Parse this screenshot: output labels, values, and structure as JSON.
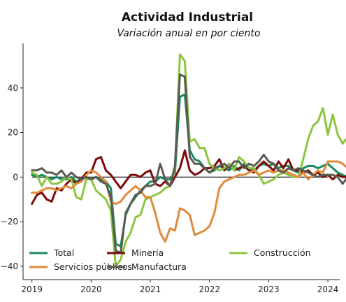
{
  "chart_data": {
    "type": "line",
    "title": "Actividad Industrial",
    "subtitle": "Variación anual en por ciento",
    "xlabel": "",
    "ylabel": "",
    "xlim": [
      2018.85,
      2024.2
    ],
    "ylim": [
      -46,
      60
    ],
    "x_ticks": [
      2019,
      2020,
      2021,
      2022,
      2023,
      2024
    ],
    "x_tick_labels": [
      "2019",
      "2020",
      "2021",
      "2022",
      "2023",
      "2024"
    ],
    "y_ticks": [
      -40,
      -20,
      0,
      20,
      40
    ],
    "y_tick_labels": [
      "−40",
      "−20",
      "0",
      "20",
      "40"
    ],
    "zero_line": true,
    "grid": false,
    "legend": {
      "location": "lower-left",
      "columns": 3
    },
    "x_start": 2019.0,
    "x_step": 0.08333,
    "series": [
      {
        "name": "Total",
        "color": "#1a8a5e",
        "values": [
          1,
          0,
          1,
          0,
          -1,
          0,
          -1,
          -1,
          0,
          -2,
          -1,
          0,
          -1,
          0,
          -1,
          -2,
          -5,
          -30,
          -31,
          -17,
          -12,
          -9,
          -6,
          -4,
          -2,
          -2,
          0,
          -1,
          -1,
          2,
          36,
          37,
          12,
          8,
          7,
          4,
          2,
          3,
          5,
          4,
          3,
          5,
          3,
          6,
          4,
          3,
          5,
          6,
          5,
          6,
          4,
          5,
          5,
          3,
          2,
          4,
          5,
          5,
          4,
          5,
          6,
          4,
          2,
          1,
          0,
          2,
          -1,
          3
        ]
      },
      {
        "name": "Minería",
        "color": "#7a0b0b",
        "values": [
          -12,
          -8,
          -7,
          -10,
          -11,
          -5,
          -6,
          -3,
          -1,
          -3,
          -1,
          2,
          2,
          8,
          9,
          3,
          1,
          -2,
          -5,
          -2,
          1,
          1,
          0,
          2,
          3,
          -3,
          -4,
          -2,
          -4,
          0,
          4,
          12,
          3,
          1,
          2,
          4,
          4,
          5,
          8,
          3,
          6,
          3,
          4,
          5,
          3,
          2,
          5,
          7,
          5,
          3,
          7,
          4,
          8,
          3,
          3,
          2,
          3,
          1,
          2,
          0,
          1,
          -1,
          1,
          0,
          0,
          -1,
          -2,
          -1
        ]
      },
      {
        "name": "Construcción",
        "color": "#8cc63f",
        "values": [
          2,
          1,
          -4,
          0,
          -3,
          -3,
          -2,
          0,
          -1,
          -9,
          -10,
          -1,
          -1,
          -6,
          -8,
          -10,
          -15,
          -40,
          -37,
          -29,
          -25,
          -18,
          -17,
          -10,
          -9,
          -8,
          -7,
          -5,
          -4,
          4,
          55,
          52,
          16,
          17,
          13,
          13,
          6,
          4,
          3,
          4,
          6,
          3,
          9,
          7,
          4,
          4,
          1,
          -3,
          -2,
          -1,
          1,
          2,
          1,
          0,
          0,
          8,
          17,
          23,
          25,
          31,
          19,
          28,
          19,
          15,
          18
        ]
      },
      {
        "name": "Servicios públicos",
        "color": "#e08a3c",
        "values": [
          -7,
          -7,
          -6,
          -5,
          -5,
          -6,
          -5,
          -4,
          -5,
          -3,
          -2,
          1,
          3,
          2,
          0,
          -2,
          -11,
          -12,
          -11,
          -8,
          -6,
          -4,
          -6,
          -9,
          -9,
          -16,
          -25,
          -29,
          -23,
          -24,
          -14,
          -15,
          -17,
          -26,
          -25,
          -24,
          -22,
          -16,
          -5,
          -2,
          -1,
          0,
          1,
          1,
          2,
          3,
          1,
          2,
          3,
          2,
          3,
          3,
          2,
          1,
          0,
          2,
          -1,
          1,
          3,
          2,
          7,
          7,
          7,
          6,
          4,
          1
        ]
      },
      {
        "name": "Manufactura",
        "color": "#5b5b52",
        "values": [
          3,
          3,
          4,
          2,
          2,
          1,
          3,
          0,
          2,
          0,
          -1,
          0,
          -1,
          0,
          -2,
          -3,
          -9,
          -33,
          -34,
          -16,
          -12,
          -8,
          -7,
          -4,
          -4,
          -3,
          6,
          -1,
          -4,
          5,
          46,
          45,
          9,
          6,
          6,
          4,
          2,
          4,
          5,
          6,
          4,
          7,
          7,
          4,
          6,
          5,
          7,
          10,
          7,
          6,
          3,
          2,
          4,
          3,
          4,
          3,
          2,
          1,
          0,
          1,
          1,
          1,
          0,
          -3,
          0,
          1
        ]
      }
    ]
  }
}
